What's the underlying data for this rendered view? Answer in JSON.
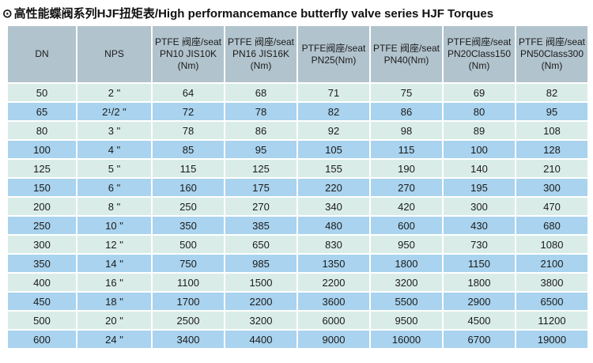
{
  "page": {
    "title_icon": "⊙",
    "title_text": "高性能蝶阀系列HJF扭矩表/High performancemance butterfly valve series HJF Torques"
  },
  "colors": {
    "header_bg": "#b1c3cd",
    "row_light": "#d9ece8",
    "row_blue": "#a9d3ee",
    "text": "#1b1b1b"
  },
  "table": {
    "headers": [
      "DN",
      "NPS",
      "PTFE 阀座/seat\nPN10 JIS10K\n(Nm)",
      "PTFE 阀座/seat\nPN16 JIS16K\n(Nm)",
      "PTFE阀座/seat\nPN25(Nm)",
      "PTFE 阀座/seat\nPN40(Nm)",
      "PTFE阀座/seat\nPN20Class150\n(Nm)",
      "PTFE 阀座/seat\nPN50Class300\n(Nm)"
    ],
    "rows": [
      {
        "dn": "50",
        "nps": "2 \"",
        "values": [
          "64",
          "68",
          "71",
          "75",
          "69",
          "82"
        ]
      },
      {
        "dn": "65",
        "nps": "2¹/2 \"",
        "values": [
          "72",
          "78",
          "82",
          "86",
          "80",
          "95"
        ]
      },
      {
        "dn": "80",
        "nps": "3 \"",
        "values": [
          "78",
          "86",
          "92",
          "98",
          "89",
          "108"
        ]
      },
      {
        "dn": "100",
        "nps": "4 \"",
        "values": [
          "85",
          "95",
          "105",
          "115",
          "100",
          "128"
        ]
      },
      {
        "dn": "125",
        "nps": "5 \"",
        "values": [
          "115",
          "125",
          "155",
          "190",
          "140",
          "210"
        ]
      },
      {
        "dn": "150",
        "nps": "6 \"",
        "values": [
          "160",
          "175",
          "220",
          "270",
          "195",
          "300"
        ]
      },
      {
        "dn": "200",
        "nps": "8 \"",
        "values": [
          "250",
          "270",
          "340",
          "420",
          "300",
          "470"
        ]
      },
      {
        "dn": "250",
        "nps": "10 \"",
        "values": [
          "350",
          "385",
          "480",
          "600",
          "430",
          "680"
        ]
      },
      {
        "dn": "300",
        "nps": "12 \"",
        "values": [
          "500",
          "650",
          "830",
          "950",
          "730",
          "1080"
        ]
      },
      {
        "dn": "350",
        "nps": "14 \"",
        "values": [
          "750",
          "985",
          "1350",
          "1800",
          "1150",
          "2100"
        ]
      },
      {
        "dn": "400",
        "nps": "16 \"",
        "values": [
          "1100",
          "1500",
          "2200",
          "3200",
          "1800",
          "3800"
        ]
      },
      {
        "dn": "450",
        "nps": "18 \"",
        "values": [
          "1700",
          "2200",
          "3600",
          "5500",
          "2900",
          "6500"
        ]
      },
      {
        "dn": "500",
        "nps": "20 \"",
        "values": [
          "2500",
          "3200",
          "6000",
          "9500",
          "4500",
          "11200"
        ]
      },
      {
        "dn": "600",
        "nps": "24 \"",
        "values": [
          "3400",
          "4400",
          "9000",
          "16000",
          "6700",
          "19000"
        ]
      }
    ]
  }
}
